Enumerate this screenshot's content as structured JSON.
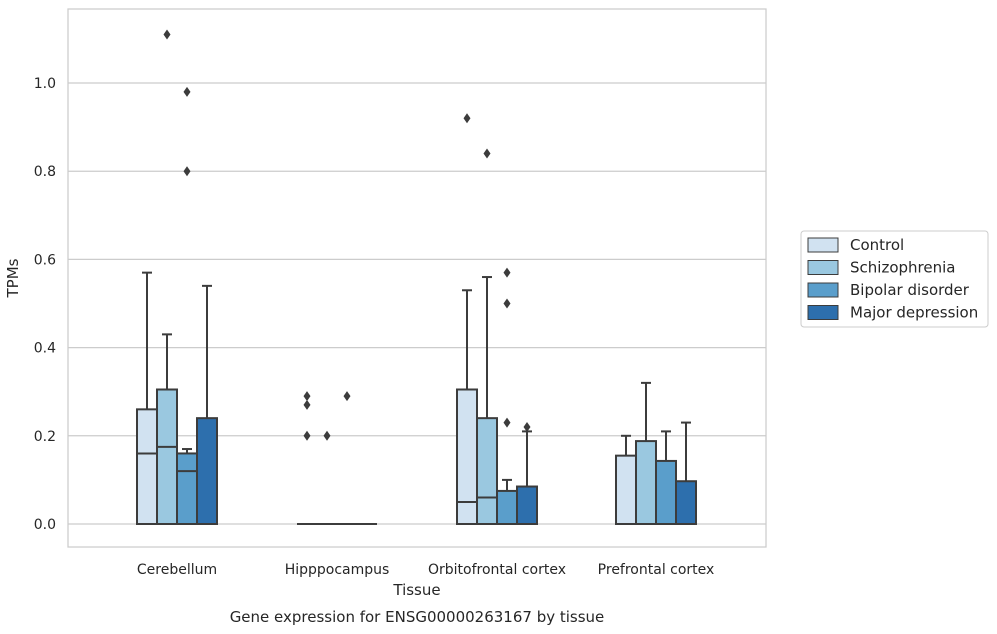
{
  "chart_data": {
    "type": "boxplot",
    "title": "",
    "xlabel": "Tissue",
    "ylabel": "TPMs",
    "caption": "Gene expression for ENSG00000263167 by tissue",
    "ylim": [
      -0.055,
      1.17
    ],
    "yticks": [
      "0.0",
      "0.2",
      "0.4",
      "0.6",
      "0.8",
      "1.0"
    ],
    "grid": "horizontal",
    "legend_position": "right",
    "categories": [
      "Cerebellum",
      "Hipppocampus",
      "Orbitofrontal cortex",
      "Prefrontal cortex"
    ],
    "series": [
      {
        "name": "Control",
        "color": "#d1e2f1",
        "boxes": [
          {
            "category": "Cerebellum",
            "whisker_low": 0.0,
            "q1": 0.0,
            "median": 0.16,
            "q3": 0.26,
            "whisker_high": 0.57,
            "outliers": []
          },
          {
            "category": "Hipppocampus",
            "whisker_low": 0.0,
            "q1": 0.0,
            "median": 0.0,
            "q3": 0.0,
            "whisker_high": 0.0,
            "outliers": [
              0.29,
              0.27,
              0.2
            ]
          },
          {
            "category": "Orbitofrontal cortex",
            "whisker_low": 0.0,
            "q1": 0.0,
            "median": 0.05,
            "q3": 0.305,
            "whisker_high": 0.53,
            "outliers": [
              0.92
            ]
          },
          {
            "category": "Prefrontal cortex",
            "whisker_low": 0.0,
            "q1": 0.0,
            "median": 0.0,
            "q3": 0.155,
            "whisker_high": 0.2,
            "outliers": []
          }
        ]
      },
      {
        "name": "Schizophrenia",
        "color": "#9ac8e0",
        "boxes": [
          {
            "category": "Cerebellum",
            "whisker_low": 0.0,
            "q1": 0.0,
            "median": 0.175,
            "q3": 0.305,
            "whisker_high": 0.43,
            "outliers": [
              1.11
            ]
          },
          {
            "category": "Hipppocampus",
            "whisker_low": 0.0,
            "q1": 0.0,
            "median": 0.0,
            "q3": 0.0,
            "whisker_high": 0.0,
            "outliers": [
              0.2
            ]
          },
          {
            "category": "Orbitofrontal cortex",
            "whisker_low": 0.0,
            "q1": 0.0,
            "median": 0.06,
            "q3": 0.24,
            "whisker_high": 0.56,
            "outliers": [
              0.84
            ]
          },
          {
            "category": "Prefrontal cortex",
            "whisker_low": 0.0,
            "q1": 0.0,
            "median": 0.0,
            "q3": 0.188,
            "whisker_high": 0.32,
            "outliers": []
          }
        ]
      },
      {
        "name": "Bipolar disorder",
        "color": "#5a9ecb",
        "boxes": [
          {
            "category": "Cerebellum",
            "whisker_low": 0.0,
            "q1": 0.0,
            "median": 0.12,
            "q3": 0.16,
            "whisker_high": 0.17,
            "outliers": [
              0.98,
              0.8
            ]
          },
          {
            "category": "Hipppocampus",
            "whisker_low": 0.0,
            "q1": 0.0,
            "median": 0.0,
            "q3": 0.0,
            "whisker_high": 0.0,
            "outliers": [
              0.29
            ]
          },
          {
            "category": "Orbitofrontal cortex",
            "whisker_low": 0.0,
            "q1": 0.0,
            "median": 0.0,
            "q3": 0.075,
            "whisker_high": 0.1,
            "outliers": [
              0.57,
              0.5,
              0.23
            ]
          },
          {
            "category": "Prefrontal cortex",
            "whisker_low": 0.0,
            "q1": 0.0,
            "median": 0.0,
            "q3": 0.143,
            "whisker_high": 0.21,
            "outliers": []
          }
        ]
      },
      {
        "name": "Major depression",
        "color": "#2d6fad",
        "boxes": [
          {
            "category": "Cerebellum",
            "whisker_low": 0.0,
            "q1": 0.0,
            "median": 0.0,
            "q3": 0.24,
            "whisker_high": 0.54,
            "outliers": []
          },
          {
            "category": "Hipppocampus",
            "whisker_low": 0.0,
            "q1": 0.0,
            "median": 0.0,
            "q3": 0.0,
            "whisker_high": 0.0,
            "outliers": []
          },
          {
            "category": "Orbitofrontal cortex",
            "whisker_low": 0.0,
            "q1": 0.0,
            "median": 0.0,
            "q3": 0.085,
            "whisker_high": 0.21,
            "outliers": [
              0.22
            ]
          },
          {
            "category": "Prefrontal cortex",
            "whisker_low": 0.0,
            "q1": 0.0,
            "median": 0.0,
            "q3": 0.097,
            "whisker_high": 0.23,
            "outliers": []
          }
        ]
      }
    ]
  }
}
